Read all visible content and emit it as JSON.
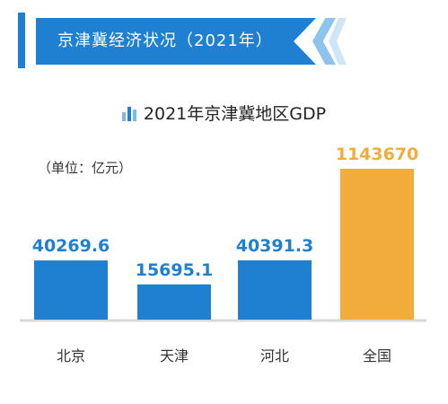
{
  "banner": {
    "title": "京津冀经济状况（2021年）"
  },
  "chart_title": "2021年京津冀地区GDP",
  "unit_label": "（单位：亿元）",
  "colors": {
    "primary": "#1f7fd1",
    "highlight": "#f2ac3b",
    "axis": "#d9d9d9"
  },
  "chart_data": {
    "type": "bar",
    "title": "2021年京津冀地区GDP",
    "unit": "（单位：亿元）",
    "categories": [
      "北京",
      "天津",
      "河北",
      "全国"
    ],
    "values": [
      40269.6,
      15695.1,
      40391.3,
      1143670
    ],
    "value_labels": [
      "40269.6",
      "15695.1",
      "40391.3",
      "1143670"
    ],
    "highlight_index": 3,
    "scale": "non-proportional (display-compressed)",
    "grid": false,
    "legend": "none"
  }
}
